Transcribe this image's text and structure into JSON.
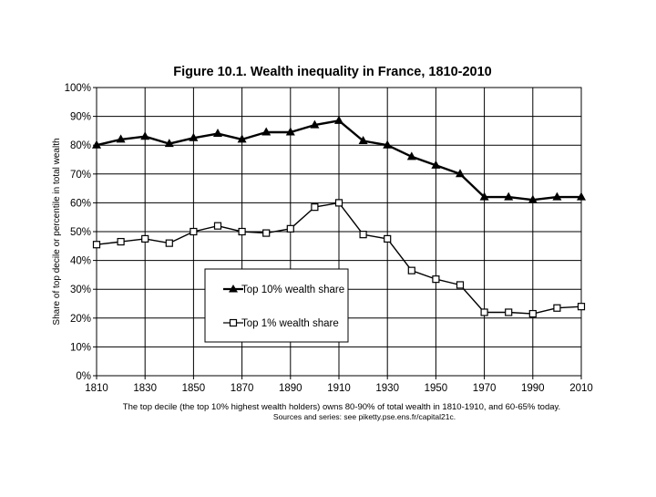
{
  "chart_data": {
    "type": "line",
    "title": "Figure 10.1. Wealth inequality in France, 1810-2010",
    "xlabel": "",
    "ylabel": "Share of top decile or percentile in total wealth",
    "x": [
      1810,
      1820,
      1830,
      1840,
      1850,
      1860,
      1870,
      1880,
      1890,
      1900,
      1910,
      1920,
      1930,
      1940,
      1950,
      1960,
      1970,
      1980,
      1990,
      2000,
      2010
    ],
    "xlim": [
      1810,
      2010
    ],
    "ylim": [
      0,
      100
    ],
    "x_ticks": [
      "1810",
      "1830",
      "1850",
      "1870",
      "1890",
      "1910",
      "1930",
      "1950",
      "1970",
      "1990",
      "2010"
    ],
    "y_ticks": [
      "0%",
      "10%",
      "20%",
      "30%",
      "40%",
      "50%",
      "60%",
      "70%",
      "80%",
      "90%",
      "100%"
    ],
    "grid": true,
    "series": [
      {
        "name": "Top 10% wealth share",
        "marker": "triangle",
        "values": [
          80,
          82,
          83,
          80.5,
          82.5,
          84,
          82,
          84.5,
          84.5,
          87,
          88.5,
          81.5,
          80,
          76,
          73,
          70,
          62,
          62,
          61,
          62,
          62
        ]
      },
      {
        "name": "Top 1% wealth share",
        "marker": "square",
        "values": [
          45.5,
          46.5,
          47.5,
          46,
          50,
          52,
          50,
          49.5,
          51,
          58.5,
          60,
          49,
          47.5,
          36.5,
          33.5,
          31.5,
          22,
          22,
          21.5,
          23.5,
          24
        ]
      }
    ],
    "legend_position": "lower-left",
    "notes": [
      "The top decile (the top 10% highest wealth holders) owns 80-90% of total wealth in 1810-1910, and 60-65% today.",
      "Sources and series: see piketty.pse.ens.fr/capital21c."
    ]
  }
}
